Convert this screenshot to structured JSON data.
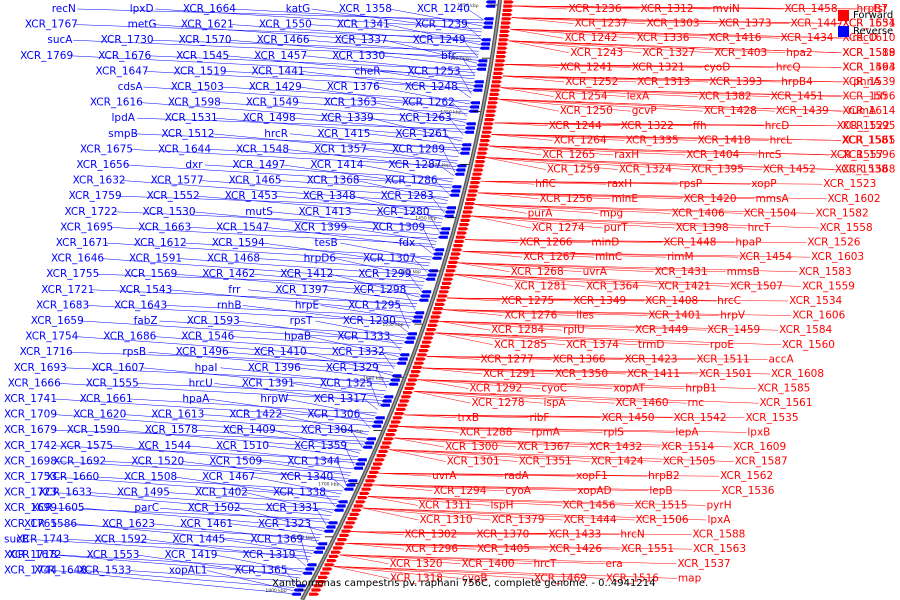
{
  "legend": {
    "forward_label": "Forward",
    "reverse_label": "Reverse",
    "forward_color": "#ff0000",
    "reverse_color": "#0000ff"
  },
  "caption": "Xanthomonas campestris pv. raphani 756C, complete genome. - 0..4941214",
  "kbp_ticks": [
    "1250 kbp",
    "1300 kbp",
    "1350 kbp",
    "1400 kbp",
    "1450 kbp",
    "1500 kbp",
    "1550 kbp",
    "1600 kbp",
    "1650 kbp",
    "1700 kbp",
    "1750 kbp",
    "1800 kbp"
  ],
  "reverse_labels": [
    "XCR_1240",
    "XCR_1239",
    "XCR_1249",
    "bfr",
    "XCR_1253",
    "XCR_1248",
    "XCR_1262",
    "XCR_1263",
    "XCR_1261",
    "XCR_1289",
    "XCR_1287",
    "XCR_1286",
    "XCR_1283",
    "XCR_1280",
    "XCR_1309",
    "fdx",
    "XCR_1307",
    "XCR_1299",
    "XCR_1298",
    "XCR_1295",
    "XCR_1290",
    "XCR_1333",
    "XCR_1332",
    "XCR_1329",
    "XCR_1325",
    "XCR_1317",
    "XCR_1306",
    "XCR_1304",
    "XCR_1359",
    "XCR_1344",
    "XCR_1340",
    "XCR_1338",
    "XCR_1331",
    "XCR_1323",
    "XCR_1369",
    "XCR_1319",
    "XCR_1365",
    "XCR_1358",
    "XCR_1341",
    "XCR_1337",
    "XCR_1330",
    "cheR",
    "XCR_1376",
    "XCR_1363",
    "XCR_1339",
    "XCR_1415",
    "XCR_1357",
    "XCR_1414",
    "XCR_1368",
    "XCR_1348",
    "XCR_1413",
    "XCR_1399",
    "tesB",
    "hrpD6",
    "XCR_1412",
    "XCR_1397",
    "hrpE",
    "rpsT",
    "hpaB",
    "XCR_1410",
    "XCR_1396",
    "XCR_1391",
    "hrpW",
    "XCR_1422",
    "XCR_1409",
    "XCR_1510",
    "XCR_1509",
    "XCR_1467",
    "XCR_1402",
    "XCR_1502",
    "XCR_1461",
    "XCR_1445",
    "XCR_1419",
    "xopAL1",
    "katG",
    "XCR_1550",
    "XCR_1466",
    "XCR_1457",
    "XCR_1441",
    "XCR_1429",
    "XCR_1549",
    "XCR_1498",
    "hrcR",
    "XCR_1548",
    "XCR_1497",
    "XCR_1465",
    "XCR_1453",
    "mutS",
    "XCR_1547",
    "XCR_1594",
    "XCR_1468",
    "XCR_1462",
    "frr",
    "rnhB",
    "XCR_1593",
    "XCR_1546",
    "XCR_1496",
    "hpaI",
    "hrcU",
    "hpaA",
    "XCR_1613",
    "XCR_1578",
    "XCR_1544",
    "XCR_1520",
    "XCR_1508",
    "XCR_1495",
    "parC",
    "XCR_1623",
    "XCR_1592",
    "XCR_1553",
    "XCR_1533",
    "XCR_1664",
    "XCR_1621",
    "XCR_1570",
    "XCR_1545",
    "XCR_1519",
    "XCR_1503",
    "XCR_1598",
    "XCR_1531",
    "XCR_1512",
    "XCR_1644",
    "dxr",
    "XCR_1577",
    "XCR_1552",
    "XCR_1530",
    "XCR_1663",
    "XCR_1612",
    "XCR_1591",
    "XCR_1569",
    "XCR_1543",
    "XCR_1643",
    "fabZ",
    "XCR_1686",
    "rpsB",
    "XCR_1607",
    "XCR_1555",
    "XCR_1661",
    "XCR_1620",
    "XCR_1590",
    "XCR_1575",
    "XCR_1692",
    "XCR_1660",
    "XCR_1633",
    "XCR_1605",
    "XCR_1586",
    "XCR_1743",
    "XCR_1672",
    "XCR_1648",
    "lpxD",
    "metG",
    "XCR_1730",
    "XCR_1676",
    "XCR_1647",
    "cdsA",
    "XCR_1616",
    "lpdA",
    "smpB",
    "XCR_1675",
    "XCR_1656",
    "XCR_1632",
    "XCR_1759",
    "XCR_1722",
    "XCR_1695",
    "XCR_1671",
    "XCR_1646",
    "XCR_1755",
    "XCR_1721",
    "XCR_1683",
    "XCR_1659",
    "XCR_1754",
    "XCR_1716",
    "XCR_1693",
    "XCR_1666",
    "XCR_1741",
    "XCR_1709",
    "XCR_1679",
    "XCR_1742",
    "XCR_1698",
    "XCR_1753",
    "XCR_1723",
    "XCR_1699",
    "XCR_1765",
    "sucB",
    "XCR_1718",
    "XCR_1744",
    "recN",
    "XCR_1767",
    "sucA",
    "XCR_1769"
  ],
  "forward_labels": [
    "XCR_1236",
    "XCR_1237",
    "XCR_1242",
    "XCR_1243",
    "XCR_1241",
    "XCR_1252",
    "XCR_1254",
    "XCR_1250",
    "XCR_1244",
    "XCR_1264",
    "XCR_1265",
    "XCR_1259",
    "hflC",
    "XCR_1256",
    "purA",
    "XCR_1274",
    "XCR_1266",
    "XCR_1267",
    "XCR_1268",
    "XCR_1281",
    "XCR_1275",
    "XCR_1276",
    "XCR_1284",
    "XCR_1285",
    "XCR_1277",
    "XCR_1291",
    "XCR_1292",
    "XCR_1278",
    "trxB",
    "XCR_1288",
    "XCR_1300",
    "XCR_1301",
    "uvrA",
    "XCR_1294",
    "XCR_1311",
    "XCR_1310",
    "XCR_1302",
    "XCR_1296",
    "XCR_1320",
    "XCR_1318",
    "XCR_1312",
    "XCR_1303",
    "XCR_1336",
    "XCR_1327",
    "XCR_1321",
    "XCR_1313",
    "lexA",
    "gcvP",
    "XCR_1322",
    "XCR_1335",
    "raxH",
    "XCR_1324",
    "raxH",
    "minE",
    "mpg",
    "purT",
    "minD",
    "minC",
    "uvrA",
    "XCR_1364",
    "XCR_1349",
    "iles",
    "rplU",
    "XCR_1374",
    "XCR_1366",
    "XCR_1350",
    "cyoC",
    "ispA",
    "ribF",
    "rpmA",
    "XCR_1367",
    "XCR_1351",
    "radA",
    "cyoA",
    "ispH",
    "XCR_1379",
    "XCR_1370",
    "XCR_1405",
    "XCR_1400",
    "cyoB",
    "mviN",
    "XCR_1373",
    "XCR_1416",
    "XCR_1403",
    "cyoD",
    "XCR_1393",
    "XCR_1382",
    "XCR_1428",
    "ffh",
    "XCR_1418",
    "XCR_1404",
    "XCR_1395",
    "rpsP",
    "XCR_1420",
    "XCR_1406",
    "XCR_1398",
    "XCR_1448",
    "rimM",
    "XCR_1431",
    "XCR_1421",
    "XCR_1408",
    "XCR_1401",
    "XCR_1449",
    "trmD",
    "XCR_1423",
    "XCR_1411",
    "xopAT",
    "XCR_1460",
    "XCR_1450",
    "rplS",
    "XCR_1432",
    "XCR_1424",
    "xopF1",
    "xopAD",
    "XCR_1456",
    "XCR_1444",
    "XCR_1433",
    "XCR_1426",
    "hrcT",
    "XCR_1469",
    "XCR_1458",
    "XCR_1447",
    "XCR_1434",
    "hpa2",
    "hrcQ",
    "hrpB4",
    "XCR_1451",
    "XCR_1439",
    "hrcD",
    "hrcL",
    "hrcS",
    "XCR_1452",
    "xopP",
    "mmsA",
    "XCR_1504",
    "hrcT",
    "hpaP",
    "XCR_1454",
    "mmsB",
    "XCR_1507",
    "hrcC",
    "hrpV",
    "XCR_1459",
    "rpoE",
    "XCR_1511",
    "XCR_1501",
    "hrpB1",
    "rnc",
    "XCR_1542",
    "lepA",
    "XCR_1514",
    "XCR_1505",
    "hrpB2",
    "lepB",
    "XCR_1515",
    "XCR_1506",
    "hrcN",
    "XCR_1551",
    "era",
    "XCR_1516",
    "hrpB7",
    "XCR_1554",
    "recO",
    "XCR_1518",
    "XCR_1493",
    "phnA",
    "XCR_1556",
    "rumA",
    "XCR_1522",
    "XCR_1581",
    "XCR_1557",
    "XCR_1538",
    "XCR_1523",
    "XCR_1602",
    "XCR_1582",
    "XCR_1558",
    "XCR_1526",
    "XCR_1603",
    "XCR_1583",
    "XCR_1559",
    "XCR_1534",
    "XCR_1606",
    "XCR_1584",
    "XCR_1560",
    "accA",
    "XCR_1608",
    "XCR_1585",
    "XCR_1561",
    "XCR_1535",
    "lpxB",
    "XCR_1609",
    "XCR_1587",
    "XCR_1562",
    "XCR_1536",
    "pyrH",
    "lpxA",
    "XCR_1588",
    "XCR_1563",
    "XCR_1537",
    "map",
    "tsf",
    "XCR_1631",
    "XCR_1610",
    "XCR_1589",
    "XCR_1564",
    "XCR_1539",
    "bfr",
    "XCR_1614",
    "XCR_1595",
    "XCR_1565",
    "XCR_1596",
    "XCR_1568"
  ]
}
